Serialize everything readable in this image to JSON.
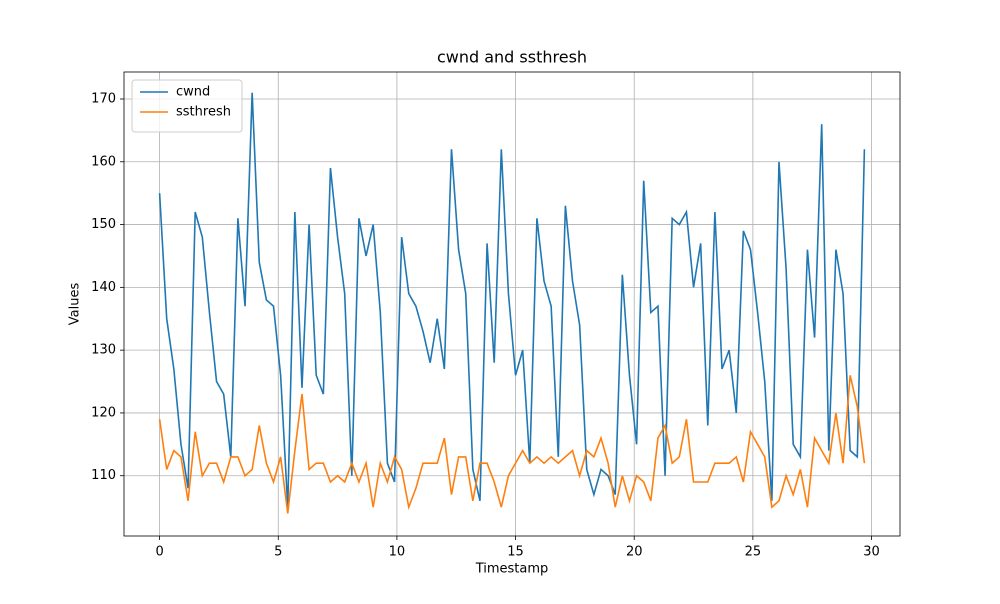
{
  "chart_data": {
    "type": "line",
    "title": "cwnd and ssthresh",
    "xlabel": "Timestamp",
    "ylabel": "Values",
    "x": [
      0,
      0.3,
      0.6,
      0.9,
      1.2,
      1.5,
      1.8,
      2.1,
      2.4,
      2.7,
      3,
      3.3,
      3.6,
      3.9,
      4.2,
      4.5,
      4.8,
      5.1,
      5.4,
      5.7,
      6,
      6.3,
      6.6,
      6.9,
      7.2,
      7.5,
      7.8,
      8.1,
      8.4,
      8.7,
      9,
      9.3,
      9.6,
      9.9,
      10.2,
      10.5,
      10.8,
      11.1,
      11.4,
      11.7,
      12,
      12.3,
      12.6,
      12.9,
      13.2,
      13.5,
      13.8,
      14.1,
      14.4,
      14.7,
      15,
      15.3,
      15.6,
      15.9,
      16.2,
      16.5,
      16.8,
      17.1,
      17.4,
      17.7,
      18,
      18.3,
      18.6,
      18.9,
      19.2,
      19.5,
      19.8,
      20.1,
      20.4,
      20.7,
      21,
      21.3,
      21.6,
      21.9,
      22.2,
      22.5,
      22.8,
      23.1,
      23.4,
      23.7,
      24,
      24.3,
      24.6,
      24.9,
      25.2,
      25.5,
      25.8,
      26.1,
      26.4,
      26.7,
      27,
      27.3,
      27.6,
      27.9,
      28.2,
      28.5,
      28.8,
      29.1,
      29.4,
      29.7
    ],
    "series": [
      {
        "name": "cwnd",
        "color": "#1f77b4",
        "values": [
          155,
          135,
          127,
          115,
          108,
          152,
          148,
          136,
          125,
          123,
          113,
          151,
          137,
          171,
          144,
          138,
          137,
          126,
          105,
          152,
          124,
          150,
          126,
          123,
          159,
          148,
          139,
          110,
          151,
          145,
          150,
          136,
          112,
          109,
          148,
          139,
          137,
          133,
          128,
          135,
          127,
          162,
          146,
          139,
          111,
          106,
          147,
          128,
          162,
          139,
          126,
          130,
          112,
          151,
          141,
          137,
          113,
          153,
          141,
          134,
          111,
          107,
          111,
          110,
          107,
          142,
          126,
          115,
          157,
          136,
          137,
          110,
          151,
          150,
          152,
          140,
          147,
          118,
          152,
          127,
          130,
          120,
          149,
          146,
          136,
          125,
          106,
          160,
          143,
          115,
          113,
          146,
          132,
          166,
          114,
          146,
          139,
          114,
          113,
          162
        ]
      },
      {
        "name": "ssthresh",
        "color": "#ff7f0e",
        "values": [
          119,
          111,
          114,
          113,
          106,
          117,
          110,
          112,
          112,
          109,
          113,
          113,
          110,
          111,
          118,
          112,
          109,
          113,
          104,
          114,
          123,
          111,
          112,
          112,
          109,
          110,
          109,
          112,
          109,
          112,
          105,
          112,
          109,
          113,
          111,
          105,
          108,
          112,
          112,
          112,
          116,
          107,
          113,
          113,
          106,
          112,
          112,
          109,
          105,
          110,
          112,
          114,
          112,
          113,
          112,
          113,
          112,
          113,
          114,
          110,
          114,
          113,
          116,
          112,
          105,
          110,
          106,
          110,
          109,
          106,
          116,
          118,
          112,
          113,
          119,
          109,
          109,
          109,
          112,
          112,
          112,
          113,
          109,
          117,
          115,
          113,
          105,
          106,
          110,
          107,
          111,
          105,
          116,
          114,
          112,
          120,
          112,
          126,
          121,
          112
        ]
      }
    ],
    "xlim": [
      -1.5,
      31.2
    ],
    "ylim": [
      100.4,
      174.3
    ],
    "xticks": [
      0,
      5,
      10,
      15,
      20,
      25,
      30
    ],
    "yticks": [
      110,
      120,
      130,
      140,
      150,
      160,
      170
    ],
    "grid": true,
    "legend": "upper-left"
  }
}
